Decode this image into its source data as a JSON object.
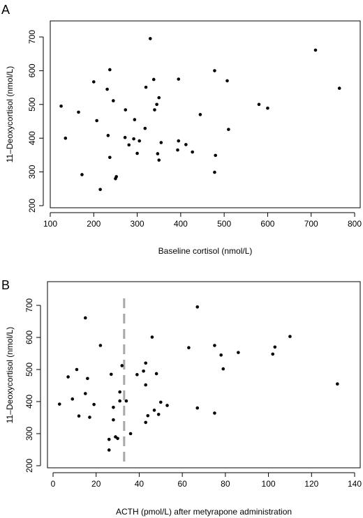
{
  "chart_data": [
    {
      "type": "scatter",
      "panel_label": "A",
      "xlabel": "Baseline cortisol (nmol/L)",
      "ylabel": "11–Deoxycortisol (nmol/L)",
      "xlim": [
        100,
        800
      ],
      "ylim": [
        200,
        700
      ],
      "xticks": [
        100,
        200,
        300,
        400,
        500,
        600,
        700,
        800
      ],
      "yticks": [
        200,
        300,
        400,
        500,
        600,
        700
      ],
      "grid": false,
      "points": [
        [
          125,
          495
        ],
        [
          135,
          400
        ],
        [
          165,
          477
        ],
        [
          173,
          292
        ],
        [
          200,
          567
        ],
        [
          207,
          452
        ],
        [
          215,
          248
        ],
        [
          231,
          545
        ],
        [
          233,
          408
        ],
        [
          237,
          603
        ],
        [
          237,
          343
        ],
        [
          245,
          511
        ],
        [
          250,
          280
        ],
        [
          252,
          286
        ],
        [
          272,
          402
        ],
        [
          273,
          484
        ],
        [
          281,
          380
        ],
        [
          292,
          398
        ],
        [
          294,
          455
        ],
        [
          300,
          355
        ],
        [
          305,
          392
        ],
        [
          318,
          429
        ],
        [
          320,
          551
        ],
        [
          330,
          695
        ],
        [
          338,
          574
        ],
        [
          340,
          484
        ],
        [
          345,
          500
        ],
        [
          347,
          354
        ],
        [
          350,
          520
        ],
        [
          350,
          335
        ],
        [
          355,
          387
        ],
        [
          393,
          365
        ],
        [
          395,
          575
        ],
        [
          395,
          392
        ],
        [
          412,
          381
        ],
        [
          427,
          359
        ],
        [
          445,
          470
        ],
        [
          478,
          600
        ],
        [
          478,
          299
        ],
        [
          480,
          349
        ],
        [
          507,
          570
        ],
        [
          510,
          426
        ],
        [
          580,
          500
        ],
        [
          600,
          489
        ],
        [
          710,
          661
        ],
        [
          765,
          548
        ]
      ]
    },
    {
      "type": "scatter",
      "panel_label": "B",
      "xlabel": "ACTH (pmol/L) after metyrapone administration",
      "ylabel": "11–Deoxycortisol (nmol/L)",
      "xlim": [
        0,
        140
      ],
      "ylim": [
        200,
        700
      ],
      "xticks": [
        0,
        20,
        40,
        60,
        80,
        100,
        120,
        140
      ],
      "yticks": [
        200,
        300,
        400,
        500,
        600,
        700
      ],
      "grid": false,
      "reference_line_x": 33,
      "points": [
        [
          3,
          392
        ],
        [
          7,
          477
        ],
        [
          9,
          408
        ],
        [
          11,
          500
        ],
        [
          12,
          355
        ],
        [
          15,
          661
        ],
        [
          15,
          425
        ],
        [
          16,
          472
        ],
        [
          17,
          351
        ],
        [
          19,
          391
        ],
        [
          22,
          575
        ],
        [
          26,
          282
        ],
        [
          26,
          249
        ],
        [
          27,
          485
        ],
        [
          28,
          382
        ],
        [
          28,
          343
        ],
        [
          29,
          290
        ],
        [
          30,
          285
        ],
        [
          31,
          430
        ],
        [
          31,
          402
        ],
        [
          32,
          512
        ],
        [
          34,
          402
        ],
        [
          36,
          300
        ],
        [
          39,
          484
        ],
        [
          42,
          495
        ],
        [
          43,
          520
        ],
        [
          43,
          335
        ],
        [
          43,
          452
        ],
        [
          44,
          356
        ],
        [
          46,
          601
        ],
        [
          47,
          373
        ],
        [
          48,
          487
        ],
        [
          49,
          360
        ],
        [
          50,
          398
        ],
        [
          53,
          388
        ],
        [
          63,
          568
        ],
        [
          67,
          695
        ],
        [
          67,
          380
        ],
        [
          75,
          575
        ],
        [
          75,
          364
        ],
        [
          78,
          545
        ],
        [
          79,
          502
        ],
        [
          86,
          553
        ],
        [
          102,
          548
        ],
        [
          103,
          570
        ],
        [
          110,
          603
        ],
        [
          132,
          455
        ]
      ]
    }
  ]
}
